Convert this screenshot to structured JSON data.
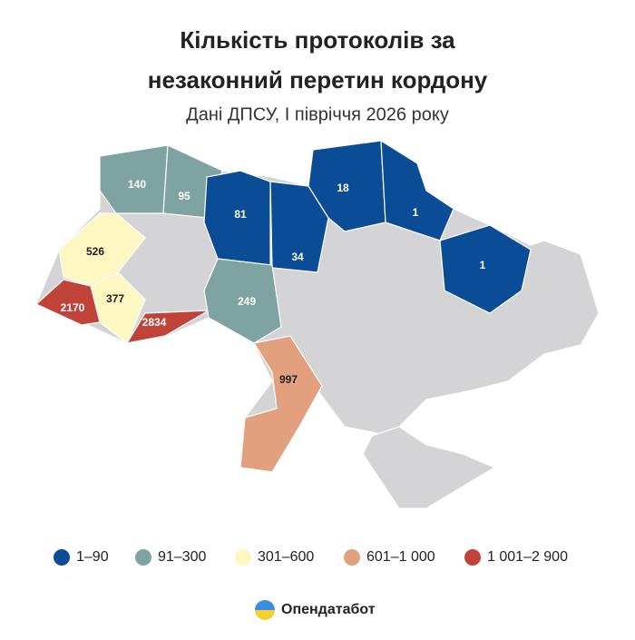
{
  "title_lines": [
    "Кількість протоколів за",
    "незаконний перетин кордону"
  ],
  "subtitle": "Дані ДПСУ, І півріччя 2026 року",
  "regions": [
    {
      "value": 140,
      "color": "#7fa3a1"
    },
    {
      "value": 95,
      "color": "#7fa3a1"
    },
    {
      "value": 81,
      "color": "#0a4d96"
    },
    {
      "value": 34,
      "color": "#0a4d96"
    },
    {
      "value": 18,
      "color": "#0a4d96"
    },
    {
      "value": 1,
      "color": "#0a4d96"
    },
    {
      "value": 1,
      "color": "#0a4d96"
    },
    {
      "value": 526,
      "color": "#fdf7c2"
    },
    {
      "value": 377,
      "color": "#fdf7c2"
    },
    {
      "value": 2170,
      "color": "#c0433a"
    },
    {
      "value": 2834,
      "color": "#c0433a"
    },
    {
      "value": 249,
      "color": "#7fa3a1"
    },
    {
      "value": 997,
      "color": "#e2a07e"
    }
  ],
  "legend": [
    {
      "label": "1–90",
      "color": "#0a4d96"
    },
    {
      "label": "91–300",
      "color": "#7fa3a1"
    },
    {
      "label": "301–600",
      "color": "#fdf7c2"
    },
    {
      "label": "601–1 000",
      "color": "#e2a07e"
    },
    {
      "label": "1 001–2 900",
      "color": "#c0433a"
    }
  ],
  "brand": "Опендатабот"
}
